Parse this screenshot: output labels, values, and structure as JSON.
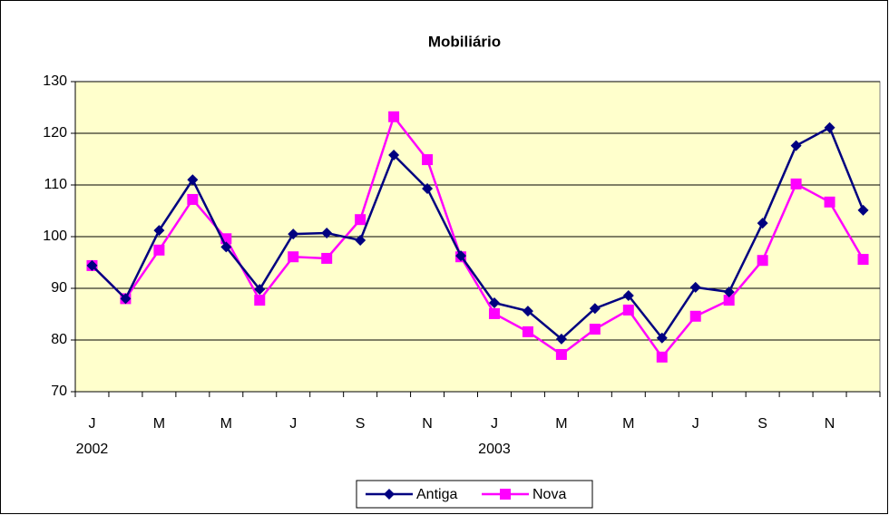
{
  "chart_data": {
    "type": "line",
    "title": "Mobiliário",
    "categories": [
      "J",
      null,
      "M",
      null,
      "M",
      null,
      "J",
      null,
      "S",
      null,
      "N",
      null,
      "J",
      null,
      "M",
      null,
      "M",
      null,
      "J",
      null,
      "S",
      null,
      "N",
      null
    ],
    "x_groups": [
      {
        "label": "2002",
        "index": 0
      },
      {
        "label": "2003",
        "index": 12
      }
    ],
    "series": [
      {
        "name": "Antiga",
        "color": "#000080",
        "marker": "diamond",
        "values": [
          94.4,
          88,
          101.2,
          111,
          98,
          89.8,
          100.5,
          100.7,
          99.3,
          115.8,
          109.3,
          96.3,
          87.2,
          85.6,
          80.2,
          86.1,
          88.6,
          80.4,
          90.2,
          89.3,
          102.6,
          117.6,
          121.1,
          105.1
        ]
      },
      {
        "name": "Nova",
        "color": "#ff00ff",
        "marker": "square",
        "values": [
          94.4,
          88,
          97.4,
          107.2,
          99.6,
          87.7,
          96.1,
          95.8,
          103.3,
          123.2,
          114.9,
          96.1,
          85.1,
          81.6,
          77.2,
          82.1,
          85.8,
          76.7,
          84.6,
          87.7,
          95.4,
          110.2,
          106.7,
          95.6
        ]
      }
    ],
    "ylim": [
      70,
      130
    ],
    "yticks": [
      70,
      80,
      90,
      100,
      110,
      120,
      130
    ],
    "grid": true,
    "legend": "bottom"
  }
}
